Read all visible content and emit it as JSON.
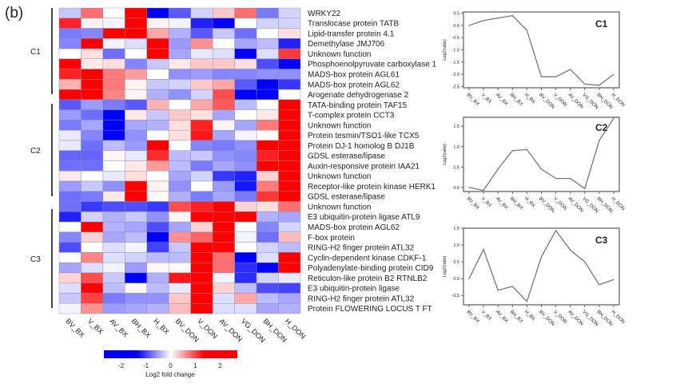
{
  "panel_label": "(b)",
  "chart_data": [
    {
      "type": "heatmap",
      "columns": [
        "BV_BX",
        "V_BX",
        "AV_BX",
        "BH_BX",
        "H_BX",
        "BV_DON",
        "V_DON",
        "AV_DON",
        "VG_DON",
        "BH_DON",
        "H_DON"
      ],
      "clusters": [
        {
          "name": "C1",
          "rows": 9
        },
        {
          "name": "C2",
          "rows": 10
        },
        {
          "name": "C3",
          "rows": 11
        }
      ],
      "rows": [
        "WRKY22",
        "Translocase protein TATB",
        "Lipid-transfer protein 4.1",
        "Demethylase JMJ706",
        "Unknown function",
        "Phosphoenolpyruvate carboxylase 1",
        "MADS-box protein AGL61",
        "MADS-box protein AGL62",
        "Arogenate dehydrogenase 2",
        "TATA-binding protein TAF15",
        "T-complex protein CCT3",
        "Unknown function",
        "Protein tesmin/TSO1-like TCX5",
        "Protein DJ-1 homolog B DJ1B",
        "GDSL esterase/lipase",
        "Auxin-responsive protein IAA21",
        "Unknown function",
        "Receptor-like protein kinase HERK1",
        "GDSL esterase/lipase",
        "Unknown function",
        "E3 ubiquitin-protein ligase ATL9",
        "MADS-box protein AGL62",
        "F-box protein",
        "RING-H2 finger protein ATL32",
        "Cyclin-dependent kinase CDKF-1",
        "Polyadenylate-binding protein CID9",
        "Reticulon-like protein B2 RTNLB2",
        "E3 ubiquitin-protein ligase",
        "RING-H2 finger protein ATL32",
        "Protein FLOWERING LOCUS T FT"
      ],
      "values": [
        [
          -0.5,
          1.3,
          0,
          2.5,
          -2.5,
          -1.5,
          -0.4,
          0.5,
          1.3,
          -1.2,
          -0.4
        ],
        [
          2,
          0.1,
          -0.1,
          2.5,
          0.1,
          -0.1,
          -2,
          -2.5,
          0,
          -0.4,
          -0.4
        ],
        [
          -1.2,
          -1.1,
          2.5,
          2.5,
          0.8,
          -0.7,
          -1.5,
          -0.5,
          -1.3,
          0,
          0.3
        ],
        [
          -1.1,
          2.5,
          -0.1,
          -0.3,
          2.5,
          -0.9,
          1.0,
          0,
          -0.8,
          -0.6,
          -2
        ],
        [
          0,
          0.3,
          -1.3,
          0,
          2.5,
          -0.8,
          -0.2,
          -0.3,
          -2.5,
          -0.3,
          1.8
        ],
        [
          2.5,
          0.2,
          0.3,
          -1.1,
          -0.5,
          0.2,
          0.5,
          0.5,
          0.3,
          -1.6,
          -2.5
        ],
        [
          2,
          2.5,
          1.2,
          0.9,
          0,
          -1.0,
          -0.9,
          -1.1,
          -1.1,
          -1.0,
          -1.0
        ],
        [
          0.7,
          2.5,
          1.2,
          0.1,
          -0.5,
          -0.4,
          0.5,
          0.8,
          -1.5,
          -2.5,
          -1.8
        ],
        [
          2.5,
          2.3,
          1.1,
          0.1,
          -0.7,
          -1.0,
          -0.4,
          1.6,
          -2.5,
          -2.5,
          0
        ],
        [
          -1.5,
          -0.9,
          -1.2,
          -1.5,
          0.7,
          0,
          0.8,
          1.5,
          -0.6,
          0,
          2.5
        ],
        [
          -0.9,
          -1.3,
          -2.3,
          0.2,
          -0.5,
          0.5,
          0.3,
          -0.8,
          0,
          0.2,
          2.5
        ],
        [
          -1.2,
          -0.8,
          -2.3,
          -0.8,
          -0.7,
          0.3,
          2,
          0.1,
          -0.8,
          1.2,
          2.5
        ],
        [
          -0.2,
          -1.1,
          -2.5,
          -1.0,
          0,
          0.3,
          2.1,
          -0.8,
          -0.1,
          0,
          2.5
        ],
        [
          -0.2,
          -1.3,
          -0.6,
          -0.9,
          2.5,
          0,
          -1.1,
          -1.2,
          -1.0,
          2.3,
          2.5
        ],
        [
          -1.4,
          -1.4,
          0.1,
          -0.2,
          1.9,
          -0.6,
          -0.5,
          -1.0,
          -1.1,
          2.0,
          2.5
        ],
        [
          -1.3,
          -1.3,
          0,
          0.2,
          0.9,
          -0.6,
          -1.2,
          -0.8,
          -1.0,
          2.5,
          2.5
        ],
        [
          0.2,
          0,
          -0.2,
          0.3,
          0,
          -0.8,
          -0.4,
          -1.8,
          -2.0,
          0.4,
          2.5
        ],
        [
          -0.9,
          -0.5,
          -1.0,
          2.5,
          0.1,
          -1.0,
          0,
          -0.9,
          -2.1,
          1.2,
          2.5
        ],
        [
          -1.3,
          -1.2,
          0.2,
          2.5,
          0.05,
          -0.7,
          -1.2,
          -0.8,
          -1.2,
          1.8,
          2.5
        ],
        [
          -1.3,
          -1.8,
          -1.6,
          -1.6,
          -1.8,
          1.6,
          2,
          2.5,
          0.4,
          0.3,
          1.3
        ],
        [
          -2,
          -0.4,
          -0.7,
          -0.5,
          -1.0,
          0.1,
          2.5,
          2.5,
          2.5,
          -0.7,
          -0.8
        ],
        [
          0,
          2.5,
          -0.7,
          -0.8,
          -1.6,
          -0.8,
          0.4,
          2.5,
          0,
          -1.1,
          -0.4
        ],
        [
          -1.1,
          0.4,
          -0.8,
          -0.6,
          -2.5,
          1.0,
          1.4,
          2.5,
          -0.1,
          -1.3,
          0.6
        ],
        [
          -1.6,
          0,
          -0.3,
          -0.1,
          -1.7,
          -0.5,
          2.5,
          2.5,
          0,
          -0.4,
          -0.6
        ],
        [
          0,
          1.1,
          -0.3,
          -0.4,
          -0.6,
          -0.6,
          2.5,
          1.3,
          -2.5,
          -0.3,
          2.5
        ],
        [
          -0.8,
          -0.3,
          -0.1,
          -0.9,
          0.05,
          0.05,
          2.5,
          1.3,
          -1.9,
          -2.5,
          2.5
        ],
        [
          0.4,
          1.6,
          -0.5,
          -2.5,
          -0.7,
          2.1,
          2.5,
          -0.1,
          -1.9,
          -0.4,
          -0.2
        ],
        [
          -0.3,
          2.5,
          -0.6,
          0.05,
          -0.6,
          -0.2,
          2.5,
          0.4,
          -0.6,
          -1.6,
          -1.7
        ],
        [
          -0.5,
          1.7,
          -1.2,
          -1.0,
          -1.0,
          0.5,
          2.5,
          -0.3,
          0.8,
          -0.6,
          -0.8
        ],
        [
          -0.1,
          1.0,
          -0.9,
          -0.8,
          -0.7,
          0.6,
          2.5,
          -0.3,
          -0.3,
          -0.8,
          -0.7
        ]
      ],
      "colorbar": {
        "label": "Log2 fold change",
        "ticks": [
          -2,
          -1,
          0,
          1,
          2
        ],
        "range": [
          -2.7,
          2.7
        ],
        "low_color": "#0000ff",
        "mid_color": "#ffffff",
        "high_color": "#ff0000"
      }
    },
    {
      "type": "line",
      "title": "C1",
      "ylabel": "Log2(ratio)",
      "x": [
        "BV_BX",
        "V_BX",
        "AV_BX",
        "BH_BX",
        "H_BX",
        "BV_DON",
        "V_DON",
        "AV_DON",
        "VG_DON",
        "BH_DON",
        "H_DON"
      ],
      "values": [
        0,
        0.2,
        0.3,
        0.4,
        -0.2,
        -2.1,
        -2.1,
        -1.8,
        -2.4,
        -2.45,
        -2.0
      ],
      "yticks": [
        "0.5",
        "0.0",
        "-0.5",
        "-1.0",
        "-1.5",
        "-2.0",
        "-2.5"
      ],
      "ylim": [
        -2.55,
        0.55
      ]
    },
    {
      "type": "line",
      "title": "C2",
      "ylabel": "Log2(ratio)",
      "x": [
        "BV_BX",
        "V_BX",
        "AV_BX",
        "BH_BX",
        "H_BX",
        "BV_DON",
        "V_DON",
        "AV_DON",
        "VG_DON",
        "BH_DON",
        "H_DON"
      ],
      "values": [
        0,
        -0.07,
        0.45,
        0.9,
        0.93,
        0.45,
        0.22,
        0.22,
        -0.03,
        1.15,
        1.7
      ],
      "yticks": [
        "1.5",
        "1.0",
        "0.5",
        "0.0"
      ],
      "ylim": [
        -0.1,
        1.72
      ]
    },
    {
      "type": "line",
      "title": "C3",
      "ylabel": "Log2(ratio)",
      "x": [
        "BV_BX",
        "V_BX",
        "AV_BX",
        "BH_BX",
        "H_BX",
        "BV_DON",
        "V_DON",
        "AV_DON",
        "VG_DON",
        "BH_DON",
        "H_DON"
      ],
      "values": [
        0,
        0.87,
        -0.35,
        -0.23,
        -0.68,
        0.65,
        1.43,
        0.85,
        0.5,
        -0.18,
        -0.03
      ],
      "yticks": [
        "1.5",
        "1.0",
        "0.5",
        "0.0",
        "-0.5"
      ],
      "ylim": [
        -0.78,
        1.5
      ]
    }
  ]
}
